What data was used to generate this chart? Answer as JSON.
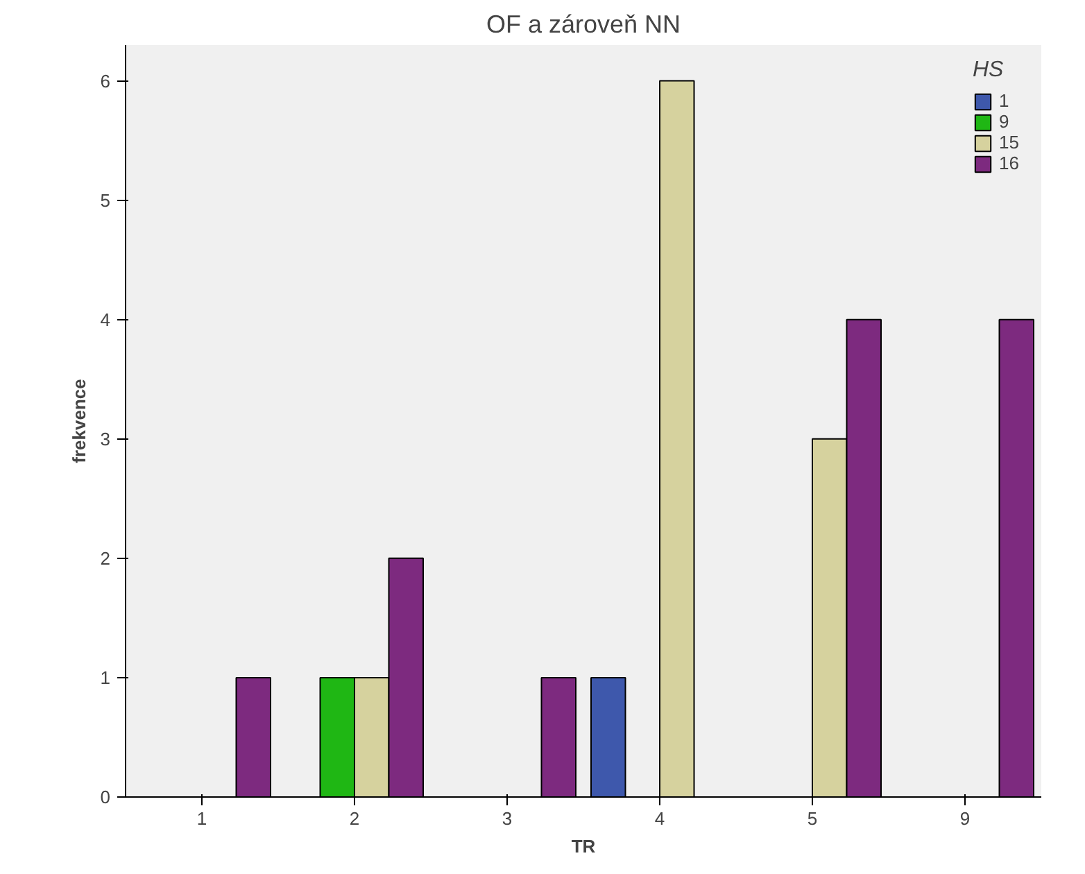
{
  "chart_data": {
    "type": "bar",
    "title": "OF a zároveň NN",
    "xlabel": "TR",
    "ylabel": "frekvence",
    "legend_title": "HS",
    "categories": [
      "1",
      "2",
      "3",
      "4",
      "5",
      "9"
    ],
    "series": [
      {
        "name": "1",
        "color": "#3e58ac",
        "values": [
          null,
          null,
          null,
          1,
          null,
          null
        ]
      },
      {
        "name": "9",
        "color": "#1fb714",
        "values": [
          null,
          1,
          null,
          null,
          null,
          null
        ]
      },
      {
        "name": "15",
        "color": "#d6d29e",
        "values": [
          null,
          1,
          null,
          6,
          3,
          null
        ]
      },
      {
        "name": "16",
        "color": "#7d2a7f",
        "values": [
          1,
          2,
          1,
          null,
          4,
          4
        ]
      }
    ],
    "ylim": [
      0,
      6.3
    ],
    "yticks": [
      0,
      1,
      2,
      3,
      4,
      5,
      6
    ],
    "grid": false,
    "legend": "top right"
  }
}
